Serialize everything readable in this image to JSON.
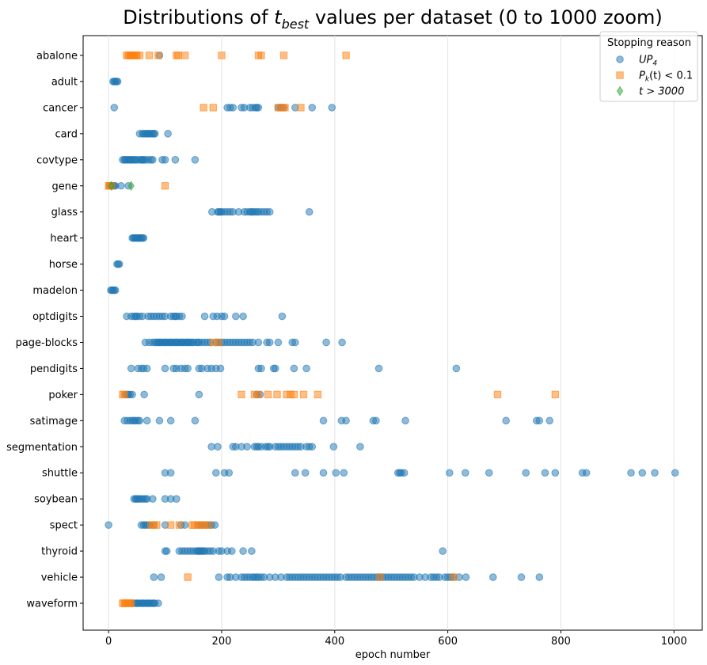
{
  "chart_data": {
    "type": "scatter",
    "title_main": "Distributions of ",
    "title_math": "t",
    "title_sub": "best",
    "title_rest": " values per dataset (0 to 1000 zoom)",
    "xlabel": "epoch number",
    "ylabel": "",
    "xlim": [
      -45,
      1050
    ],
    "xticks": [
      0,
      200,
      400,
      600,
      800,
      1000
    ],
    "grid": "vertical",
    "legend": {
      "title": "Stopping reason",
      "placement": "top-right",
      "entries": [
        {
          "label_main": "UP",
          "label_sub": "4",
          "marker": "circle",
          "color": "#1f77b4"
        },
        {
          "label_main": "P",
          "label_sub": "k",
          "label_rest": "(t) < 0.1",
          "marker": "square",
          "color": "#ff7f0e"
        },
        {
          "label_main": "t > 3000",
          "label_sub": "",
          "marker": "diamond",
          "color": "#2ca02c"
        }
      ]
    },
    "categories": [
      "abalone",
      "adult",
      "cancer",
      "card",
      "covtype",
      "gene",
      "glass",
      "heart",
      "horse",
      "madelon",
      "optdigits",
      "page-blocks",
      "pendigits",
      "poker",
      "satimage",
      "segmentation",
      "shuttle",
      "soybean",
      "spect",
      "thyroid",
      "vehicle",
      "waveform"
    ],
    "series": [
      {
        "name": "UP4",
        "marker": "circle",
        "color": "#1f77b4",
        "points": {
          "abalone": [
            90
          ],
          "adult": [
            8,
            10,
            12,
            14,
            16
          ],
          "cancer": [
            10,
            210,
            215,
            220,
            235,
            240,
            250,
            255,
            260,
            262,
            265,
            300,
            305,
            310,
            330,
            360,
            395
          ],
          "card": [
            55,
            60,
            62,
            65,
            68,
            70,
            72,
            75,
            78,
            80,
            82,
            105
          ],
          "covtype": [
            25,
            28,
            30,
            33,
            35,
            38,
            40,
            42,
            45,
            48,
            50,
            55,
            58,
            60,
            62,
            65,
            70,
            75,
            78,
            95,
            100,
            118,
            153
          ],
          "gene": [
            2,
            5,
            8,
            10,
            12,
            22,
            35
          ],
          "glass": [
            183,
            193,
            195,
            198,
            200,
            205,
            210,
            215,
            220,
            230,
            240,
            245,
            250,
            252,
            255,
            258,
            262,
            265,
            270,
            275,
            280,
            285,
            355
          ],
          "heart": [
            42,
            44,
            46,
            48,
            50,
            52,
            54,
            56,
            58,
            60,
            62
          ],
          "horse": [
            15,
            17,
            19
          ],
          "madelon": [
            4,
            6,
            8,
            10,
            12
          ],
          "optdigits": [
            32,
            40,
            45,
            48,
            50,
            55,
            60,
            70,
            75,
            80,
            85,
            90,
            95,
            100,
            110,
            115,
            118,
            120,
            125,
            130,
            170,
            185,
            192,
            200,
            205,
            225,
            238,
            307
          ],
          "page-blocks": [
            65,
            72,
            78,
            82,
            85,
            88,
            90,
            92,
            95,
            98,
            100,
            102,
            105,
            108,
            110,
            112,
            115,
            118,
            120,
            122,
            125,
            128,
            130,
            132,
            135,
            138,
            140,
            142,
            145,
            148,
            150,
            155,
            158,
            160,
            165,
            170,
            175,
            180,
            190,
            195,
            200,
            205,
            210,
            215,
            220,
            225,
            230,
            235,
            240,
            245,
            250,
            255,
            265,
            280,
            285,
            300,
            325,
            330,
            385,
            413
          ],
          "pendigits": [
            40,
            52,
            58,
            62,
            68,
            100,
            115,
            120,
            128,
            135,
            140,
            160,
            165,
            175,
            182,
            190,
            198,
            265,
            270,
            292,
            295,
            328,
            350,
            478,
            615
          ],
          "poker": [
            30,
            33,
            35,
            38,
            42,
            63,
            160,
            262,
            268
          ],
          "satimage": [
            28,
            33,
            38,
            42,
            45,
            48,
            52,
            55,
            68,
            90,
            110,
            153,
            380,
            412,
            420,
            468,
            473,
            525,
            703,
            757,
            762,
            780
          ],
          "segmentation": [
            182,
            193,
            220,
            225,
            235,
            245,
            258,
            262,
            265,
            270,
            278,
            282,
            285,
            295,
            300,
            305,
            310,
            315,
            320,
            325,
            330,
            335,
            340,
            350,
            355,
            360,
            398,
            445
          ],
          "shuttle": [
            100,
            110,
            190,
            205,
            213,
            330,
            348,
            380,
            402,
            416,
            512,
            515,
            518,
            523,
            603,
            631,
            673,
            738,
            772,
            790,
            838,
            845,
            924,
            944,
            966,
            1002
          ],
          "soybean": [
            45,
            48,
            50,
            52,
            55,
            58,
            62,
            65,
            68,
            78,
            100,
            110,
            120
          ],
          "spect": [
            0,
            58,
            62,
            65,
            68,
            72,
            80,
            100,
            128,
            135,
            160,
            165,
            172,
            178,
            182,
            188
          ],
          "thyroid": [
            100,
            103,
            125,
            130,
            135,
            140,
            145,
            150,
            155,
            158,
            160,
            162,
            165,
            168,
            170,
            175,
            180,
            185,
            195,
            200,
            210,
            218,
            238,
            253,
            591
          ],
          "vehicle": [
            80,
            93,
            195,
            210,
            215,
            225,
            235,
            240,
            245,
            250,
            255,
            258,
            262,
            265,
            270,
            275,
            285,
            295,
            305,
            315,
            320,
            325,
            330,
            335,
            340,
            345,
            350,
            355,
            360,
            365,
            370,
            375,
            380,
            385,
            390,
            395,
            400,
            405,
            410,
            420,
            425,
            430,
            435,
            440,
            445,
            450,
            455,
            460,
            465,
            470,
            475,
            480,
            485,
            490,
            495,
            500,
            505,
            510,
            515,
            520,
            525,
            530,
            535,
            540,
            550,
            560,
            570,
            575,
            580,
            585,
            595,
            600,
            605,
            610,
            620,
            632,
            680,
            730,
            762
          ],
          "waveform": [
            42,
            45,
            48,
            50,
            52,
            55,
            58,
            60,
            62,
            65,
            68,
            70,
            72,
            75,
            78,
            80,
            82,
            88
          ]
        }
      },
      {
        "name": "Pk(t) < 0.1",
        "marker": "square",
        "color": "#ff7f0e",
        "points": {
          "abalone": [
            32,
            35,
            38,
            40,
            42,
            45,
            48,
            50,
            55,
            72,
            88,
            120,
            123,
            135,
            200,
            265,
            270,
            310,
            420
          ],
          "cancer": [
            168,
            185,
            300,
            308,
            312,
            340
          ],
          "gene": [
            0,
            2,
            5,
            100
          ],
          "page-blocks": [
            185,
            195
          ],
          "poker": [
            25,
            28,
            235,
            258,
            265,
            282,
            298,
            315,
            322,
            328,
            345,
            370,
            688,
            790
          ],
          "spect": [
            75,
            80,
            85,
            110,
            125,
            148,
            152,
            158,
            165,
            170,
            178
          ],
          "vehicle": [
            140,
            480,
            610
          ],
          "waveform": [
            25,
            28,
            30,
            32,
            35,
            38,
            40
          ]
        }
      },
      {
        "name": "t > 3000",
        "marker": "diamond",
        "color": "#2ca02c",
        "points": {
          "gene": [
            5,
            40
          ]
        }
      }
    ]
  }
}
